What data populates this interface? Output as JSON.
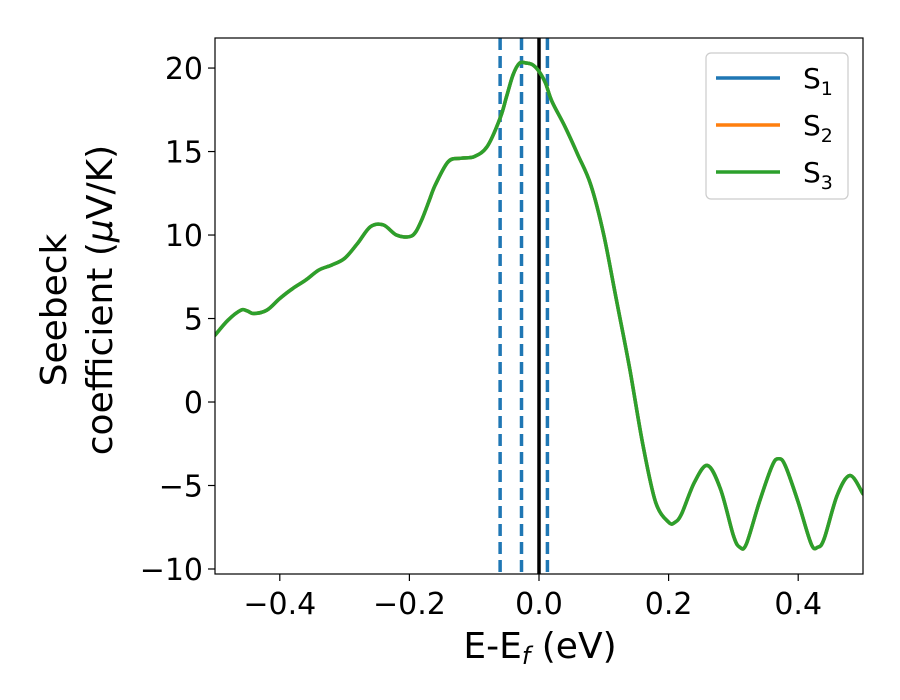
{
  "chart_data": {
    "type": "line",
    "title": "",
    "xlabel": "E-E",
    "xlabel_sub": "f",
    "xlabel_unit": " (eV)",
    "ylabel_line1": "Seebeck",
    "ylabel_line2": "coefficient  (",
    "ylabel_mu": "μ",
    "ylabel_unit_rest": "V/K)",
    "xlim": [
      -0.5,
      0.5
    ],
    "ylim": [
      -10.3,
      21.8
    ],
    "x_ticks": [
      -0.4,
      -0.2,
      0.0,
      0.2,
      0.4
    ],
    "x_tick_labels": [
      "−0.4",
      "−0.2",
      "0.0",
      "0.2",
      "0.4"
    ],
    "y_ticks": [
      -10,
      -5,
      0,
      5,
      10,
      15,
      20
    ],
    "y_tick_labels": [
      "−10",
      "−5",
      "0",
      "5",
      "10",
      "15",
      "20"
    ],
    "grid": false,
    "legend_position": "top-right",
    "vertical_lines": [
      {
        "x": -0.06,
        "style": "dashed",
        "color": "#1f77b4"
      },
      {
        "x": -0.027,
        "style": "dashed",
        "color": "#1f77b4"
      },
      {
        "x": 0.0,
        "style": "solid",
        "color": "#000000"
      },
      {
        "x": 0.013,
        "style": "dashed",
        "color": "#1f77b4"
      }
    ],
    "series": [
      {
        "name": "S",
        "sub": "1",
        "color": "#1f77b4"
      },
      {
        "name": "S",
        "sub": "2",
        "color": "#ff7f0e"
      },
      {
        "name": "S",
        "sub": "3",
        "color": "#2ca02c"
      }
    ],
    "x": [
      -0.5,
      -0.48,
      -0.46,
      -0.45,
      -0.44,
      -0.42,
      -0.4,
      -0.38,
      -0.36,
      -0.34,
      -0.32,
      -0.3,
      -0.28,
      -0.26,
      -0.24,
      -0.22,
      -0.2,
      -0.19,
      -0.18,
      -0.17,
      -0.16,
      -0.14,
      -0.12,
      -0.1,
      -0.08,
      -0.06,
      -0.05,
      -0.04,
      -0.03,
      -0.02,
      -0.01,
      0.0,
      0.01,
      0.02,
      0.04,
      0.06,
      0.08,
      0.1,
      0.12,
      0.14,
      0.16,
      0.18,
      0.2,
      0.21,
      0.22,
      0.24,
      0.26,
      0.28,
      0.3,
      0.31,
      0.32,
      0.34,
      0.36,
      0.37,
      0.38,
      0.4,
      0.42,
      0.43,
      0.44,
      0.46,
      0.48,
      0.5
    ],
    "values": [
      4.0,
      4.9,
      5.5,
      5.45,
      5.3,
      5.5,
      6.2,
      6.8,
      7.3,
      7.9,
      8.2,
      8.6,
      9.5,
      10.5,
      10.6,
      10.0,
      9.9,
      10.2,
      11.0,
      12.0,
      13.0,
      14.4,
      14.6,
      14.7,
      15.3,
      17.0,
      18.3,
      19.6,
      20.3,
      20.3,
      20.2,
      19.8,
      19.1,
      18.0,
      16.5,
      14.8,
      13.0,
      10.0,
      6.0,
      2.0,
      -2.5,
      -6.0,
      -7.2,
      -7.2,
      -6.7,
      -4.8,
      -3.8,
      -5.2,
      -8.0,
      -8.7,
      -8.5,
      -6.0,
      -3.8,
      -3.4,
      -3.8,
      -6.0,
      -8.5,
      -8.7,
      -8.2,
      -5.6,
      -4.4,
      -5.5
    ]
  }
}
